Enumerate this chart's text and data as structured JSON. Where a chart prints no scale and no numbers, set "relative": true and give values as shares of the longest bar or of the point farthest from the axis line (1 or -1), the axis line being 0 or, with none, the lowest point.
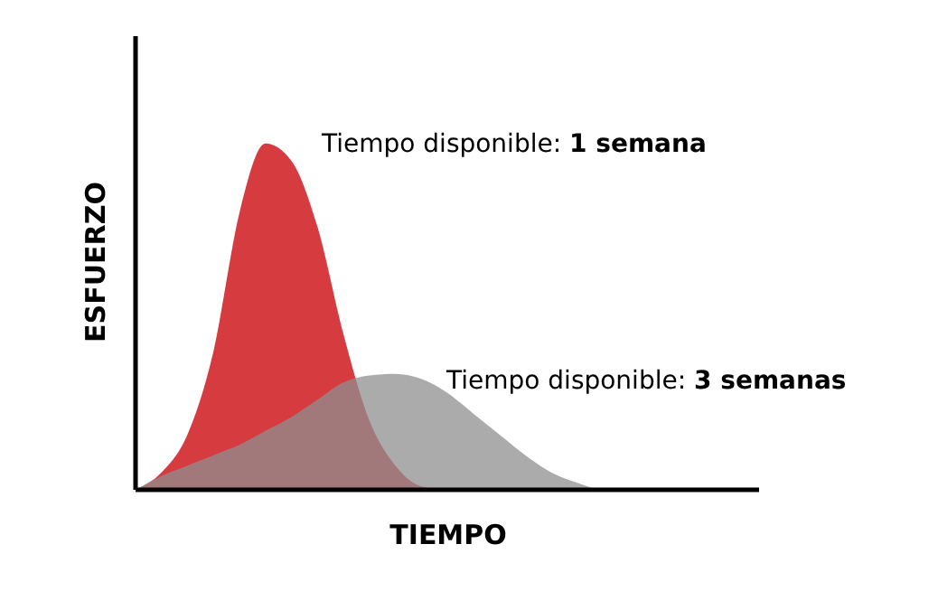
{
  "chart_data": {
    "type": "area",
    "relative": true,
    "xlabel": "TIEMPO",
    "ylabel": "ESFUERZO",
    "categories": [
      null,
      null,
      null,
      null,
      null,
      null,
      null,
      null,
      null,
      null,
      null,
      null,
      null,
      null,
      null,
      null,
      null,
      null,
      null,
      null,
      null,
      null,
      null,
      null,
      null
    ],
    "series": [
      {
        "color": "#d63b40",
        "values": [
          0,
          0.05,
          0.16,
          0.4,
          0.8,
          1,
          0.95,
          0.76,
          0.45,
          0.2,
          0.07,
          0.01,
          0,
          0,
          0,
          0,
          0,
          0,
          0,
          0,
          0,
          0,
          0,
          0,
          0
        ]
      },
      {
        "color": "#8f8f8f",
        "values": [
          0,
          0.04,
          0.07,
          0.1,
          0.13,
          0.17,
          0.21,
          0.26,
          0.31,
          0.33,
          0.335,
          0.32,
          0.28,
          0.22,
          0.16,
          0.1,
          0.05,
          0.02,
          0,
          0,
          0,
          0,
          0,
          0,
          0
        ]
      }
    ],
    "annotations": [
      "Tiempo disponible: 1 semana",
      "Tiempo disponible: 3 semanas"
    ]
  }
}
